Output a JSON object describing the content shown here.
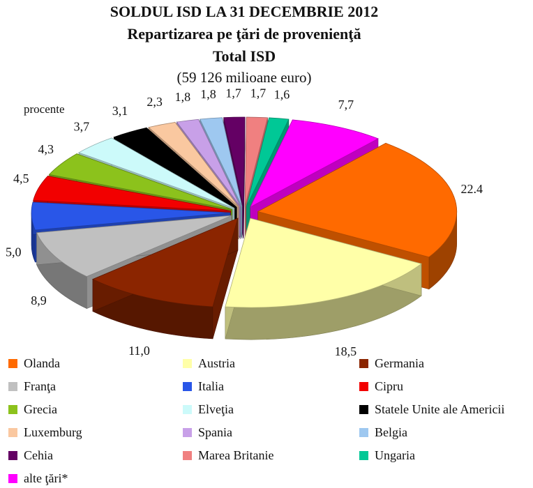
{
  "chart_data": {
    "type": "pie",
    "title": "SOLDUL ISD LA 31 DECEMBRIE 2012",
    "subtitle": "Repartizarea pe ţări de provenienţă",
    "subtitle2": "Total ISD",
    "subtitle3": "(59 126 milioane euro)",
    "unit_label": "procente",
    "legend_position": "bottom",
    "slices": [
      {
        "label": "Olanda",
        "value": 22.4,
        "display": "22.4",
        "color": "#ff6a00"
      },
      {
        "label": "Austria",
        "value": 18.5,
        "display": "18,5",
        "color": "#ffffa8"
      },
      {
        "label": "Germania",
        "value": 11.0,
        "display": "11,0",
        "color": "#8b2500"
      },
      {
        "label": "Franţa",
        "value": 8.9,
        "display": "8,9",
        "color": "#c0c0c0"
      },
      {
        "label": "Italia",
        "value": 5.0,
        "display": "5,0",
        "color": "#2956e8"
      },
      {
        "label": "Cipru",
        "value": 4.5,
        "display": "4,5",
        "color": "#f20000"
      },
      {
        "label": "Grecia",
        "value": 4.3,
        "display": "4,3",
        "color": "#8cc21c"
      },
      {
        "label": "Elveţia",
        "value": 3.7,
        "display": "3,7",
        "color": "#ccfafa"
      },
      {
        "label": "Statele Unite ale Americii",
        "value": 3.1,
        "display": "3,1",
        "color": "#000000"
      },
      {
        "label": "Luxemburg",
        "value": 2.3,
        "display": "2,3",
        "color": "#fac8a0"
      },
      {
        "label": "Spania",
        "value": 1.8,
        "display": "1,8",
        "color": "#c8a0e8"
      },
      {
        "label": "Belgia",
        "value": 1.8,
        "display": "1,8",
        "color": "#9ec8f0"
      },
      {
        "label": "Cehia",
        "value": 1.7,
        "display": "1,7",
        "color": "#640064"
      },
      {
        "label": "Marea Britanie",
        "value": 1.7,
        "display": "1,7",
        "color": "#f08080"
      },
      {
        "label": "Ungaria",
        "value": 1.6,
        "display": "1,6",
        "color": "#00c896"
      },
      {
        "label": "alte ţări*",
        "value": 7.7,
        "display": "7,7",
        "color": "#ff00ff"
      }
    ]
  }
}
